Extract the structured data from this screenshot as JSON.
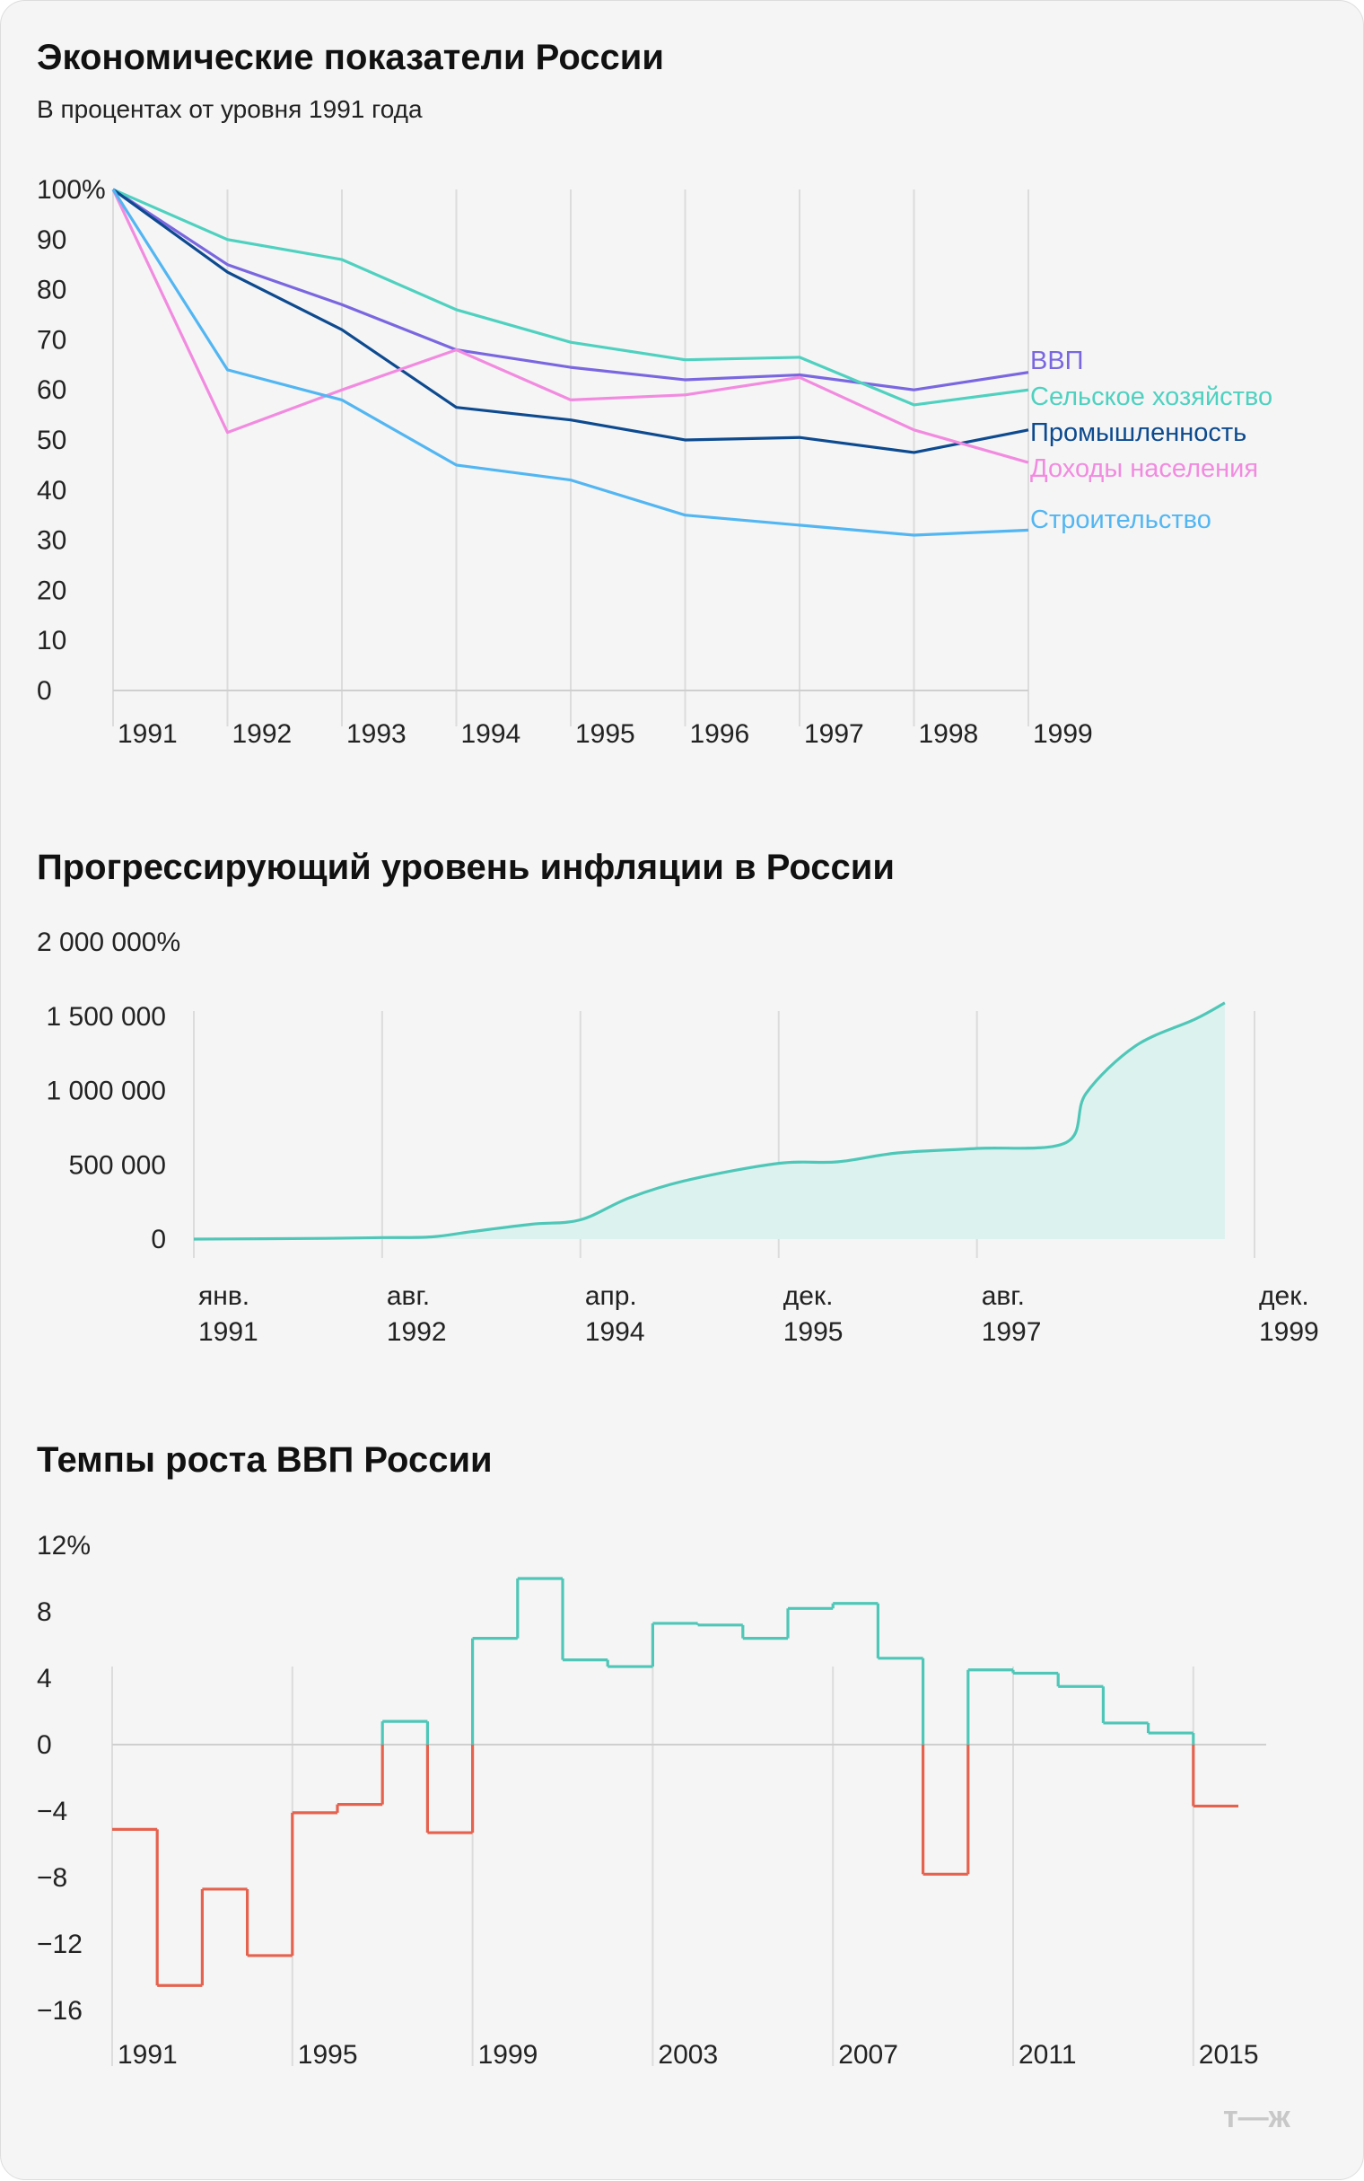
{
  "colors": {
    "gdp": "#7a67e0",
    "agriculture": "#4fd1c0",
    "industry": "#0d4a8f",
    "income": "#f28be0",
    "construction": "#52b6f2",
    "inflation_line": "#4fc7b8",
    "inflation_fill": "#dcf2ef",
    "growth_positive": "#4fc7b8",
    "growth_negative": "#e5624f"
  },
  "logo": "т—ж",
  "chart_data": [
    {
      "type": "line",
      "title": "Экономические показатели России",
      "subtitle": "В процентах от уровня 1991 года",
      "ylim": [
        0,
        100
      ],
      "y_ticks": [
        "100%",
        "90",
        "80",
        "70",
        "60",
        "50",
        "40",
        "30",
        "20",
        "10",
        "0"
      ],
      "x_ticks": [
        "1991",
        "1992",
        "1993",
        "1994",
        "1995",
        "1996",
        "1997",
        "1998",
        "1999"
      ],
      "x": [
        1991,
        1992,
        1993,
        1994,
        1995,
        1996,
        1997,
        1998,
        1999
      ],
      "legend_position": "right",
      "series": [
        {
          "key": "gdp",
          "name": "ВВП",
          "values": [
            100,
            85,
            77,
            68,
            64.5,
            62,
            63,
            60,
            63.5
          ]
        },
        {
          "key": "agriculture",
          "name": "Сельское хозяйство",
          "values": [
            100,
            90,
            86,
            76,
            69.5,
            66,
            66.5,
            57,
            60
          ]
        },
        {
          "key": "industry",
          "name": "Промышленность",
          "values": [
            100,
            83.5,
            72,
            56.5,
            54,
            50,
            50.5,
            47.5,
            52
          ]
        },
        {
          "key": "income",
          "name": "Доходы населения",
          "values": [
            100,
            51.5,
            60,
            68,
            58,
            59,
            62.5,
            52,
            45.5
          ]
        },
        {
          "key": "construction",
          "name": "Строительство",
          "values": [
            100,
            64,
            58,
            45,
            42,
            35,
            33,
            31,
            32
          ]
        }
      ]
    },
    {
      "type": "area",
      "title": "Прогрессирующий уровень инфляции в России",
      "ylim": [
        0,
        2000000
      ],
      "y_ticks": [
        "2 000 000%",
        "1 500 000",
        "1 000 000",
        "500 000",
        "0"
      ],
      "x_ticks": [
        {
          "month": "янв.",
          "year": "1991"
        },
        {
          "month": "авг.",
          "year": "1992"
        },
        {
          "month": "апр.",
          "year": "1994"
        },
        {
          "month": "дек.",
          "year": "1995"
        },
        {
          "month": "авг.",
          "year": "1997"
        },
        {
          "month": "дек.",
          "year": "1999"
        }
      ],
      "points": [
        {
          "x": "1991-01",
          "y": 0
        },
        {
          "x": "1992-02",
          "y": 5000
        },
        {
          "x": "1992-08",
          "y": 10000
        },
        {
          "x": "1993-01",
          "y": 15000
        },
        {
          "x": "1993-05",
          "y": 50000
        },
        {
          "x": "1993-11",
          "y": 100000
        },
        {
          "x": "1994-04",
          "y": 130000
        },
        {
          "x": "1994-09",
          "y": 280000
        },
        {
          "x": "1995-03",
          "y": 400000
        },
        {
          "x": "1995-12",
          "y": 510000
        },
        {
          "x": "1996-06",
          "y": 520000
        },
        {
          "x": "1996-12",
          "y": 580000
        },
        {
          "x": "1997-08",
          "y": 610000
        },
        {
          "x": "1998-05",
          "y": 650000
        },
        {
          "x": "1998-07",
          "y": 980000
        },
        {
          "x": "1998-12",
          "y": 1300000
        },
        {
          "x": "1999-06",
          "y": 1480000
        },
        {
          "x": "1999-09",
          "y": 1590000
        }
      ]
    },
    {
      "type": "line",
      "title": "Темпы роста ВВП России",
      "ylim": [
        -18,
        12
      ],
      "y_ticks": [
        "12%",
        "8",
        "4",
        "0",
        "−4",
        "−8",
        "−12",
        "−16"
      ],
      "x_ticks": [
        "1991",
        "1995",
        "1999",
        "2003",
        "2007",
        "2011",
        "2015"
      ],
      "years": [
        1991,
        1992,
        1993,
        1994,
        1995,
        1996,
        1997,
        1998,
        1999,
        2000,
        2001,
        2002,
        2003,
        2004,
        2005,
        2006,
        2007,
        2008,
        2009,
        2010,
        2011,
        2012,
        2013,
        2014,
        2015
      ],
      "values": [
        -5.1,
        -14.5,
        -8.7,
        -12.7,
        -4.1,
        -3.6,
        1.4,
        -5.3,
        6.4,
        10.0,
        5.1,
        4.7,
        7.3,
        7.2,
        6.4,
        8.2,
        8.5,
        5.2,
        -7.8,
        4.5,
        4.3,
        3.5,
        1.3,
        0.7,
        -3.7
      ]
    }
  ]
}
